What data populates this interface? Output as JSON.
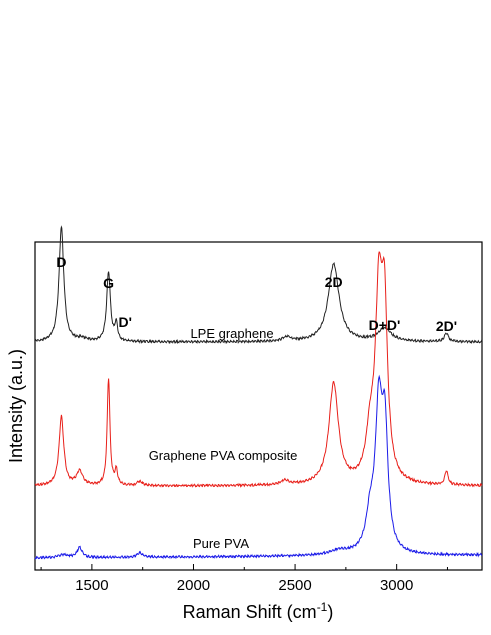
{
  "chart_data": {
    "type": "line",
    "title": "",
    "xlabel": "Raman Shift (cm",
    "xlabel_sup": "-1",
    "xlabel_suffix": ")",
    "ylabel": "Intensity (a.u.)",
    "xlim": [
      1220,
      3420
    ],
    "x_ticks": [
      1500,
      2000,
      2500,
      3000
    ],
    "grid": false,
    "legend": "none",
    "colors": {
      "LPE graphene": "#222222",
      "Graphene PVA composite": "#e8201a",
      "Pure PVA": "#1a1ae8"
    },
    "series_labels": [
      "LPE graphene",
      "Graphene PVA composite",
      "Pure PVA"
    ],
    "peak_labels": [
      {
        "text": "D",
        "x": 1350
      },
      {
        "text": "G",
        "x": 1582
      },
      {
        "text": "D'",
        "x": 1620
      },
      {
        "text": "2D",
        "x": 2690
      },
      {
        "text": "D+D'",
        "x": 2940
      },
      {
        "text": "2D'",
        "x": 3245
      }
    ],
    "series": [
      {
        "name": "LPE graphene",
        "baseline": 0.05,
        "offset": 0.7,
        "slope": 0.0,
        "peaks": [
          {
            "x": 1350,
            "h": 0.4,
            "w": 14
          },
          {
            "x": 1450,
            "h": 0.01,
            "w": 30
          },
          {
            "x": 1582,
            "h": 0.24,
            "w": 11
          },
          {
            "x": 1620,
            "h": 0.06,
            "w": 8
          },
          {
            "x": 2460,
            "h": 0.015,
            "w": 25
          },
          {
            "x": 2690,
            "h": 0.27,
            "w": 32
          },
          {
            "x": 2940,
            "h": 0.045,
            "w": 40
          },
          {
            "x": 3245,
            "h": 0.03,
            "w": 12
          }
        ]
      },
      {
        "name": "Graphene PVA composite",
        "baseline": 0.0,
        "offset": 0.25,
        "slope": 0.0,
        "peaks": [
          {
            "x": 1350,
            "h": 0.24,
            "w": 14
          },
          {
            "x": 1440,
            "h": 0.05,
            "w": 18
          },
          {
            "x": 1582,
            "h": 0.37,
            "w": 8
          },
          {
            "x": 1620,
            "h": 0.05,
            "w": 8
          },
          {
            "x": 1735,
            "h": 0.015,
            "w": 15
          },
          {
            "x": 2450,
            "h": 0.015,
            "w": 25
          },
          {
            "x": 2690,
            "h": 0.35,
            "w": 28
          },
          {
            "x": 2870,
            "h": 0.15,
            "w": 25
          },
          {
            "x": 2912,
            "h": 0.6,
            "w": 20
          },
          {
            "x": 2940,
            "h": 0.55,
            "w": 18
          },
          {
            "x": 3245,
            "h": 0.05,
            "w": 9
          }
        ]
      },
      {
        "name": "Pure PVA",
        "baseline": 0.0,
        "offset": 0.0,
        "slope": 0.01,
        "peaks": [
          {
            "x": 1360,
            "h": 0.01,
            "w": 30
          },
          {
            "x": 1440,
            "h": 0.035,
            "w": 15
          },
          {
            "x": 1735,
            "h": 0.015,
            "w": 15
          },
          {
            "x": 2720,
            "h": 0.015,
            "w": 60
          },
          {
            "x": 2870,
            "h": 0.12,
            "w": 25
          },
          {
            "x": 2912,
            "h": 0.48,
            "w": 20
          },
          {
            "x": 2942,
            "h": 0.4,
            "w": 18
          }
        ]
      }
    ]
  }
}
